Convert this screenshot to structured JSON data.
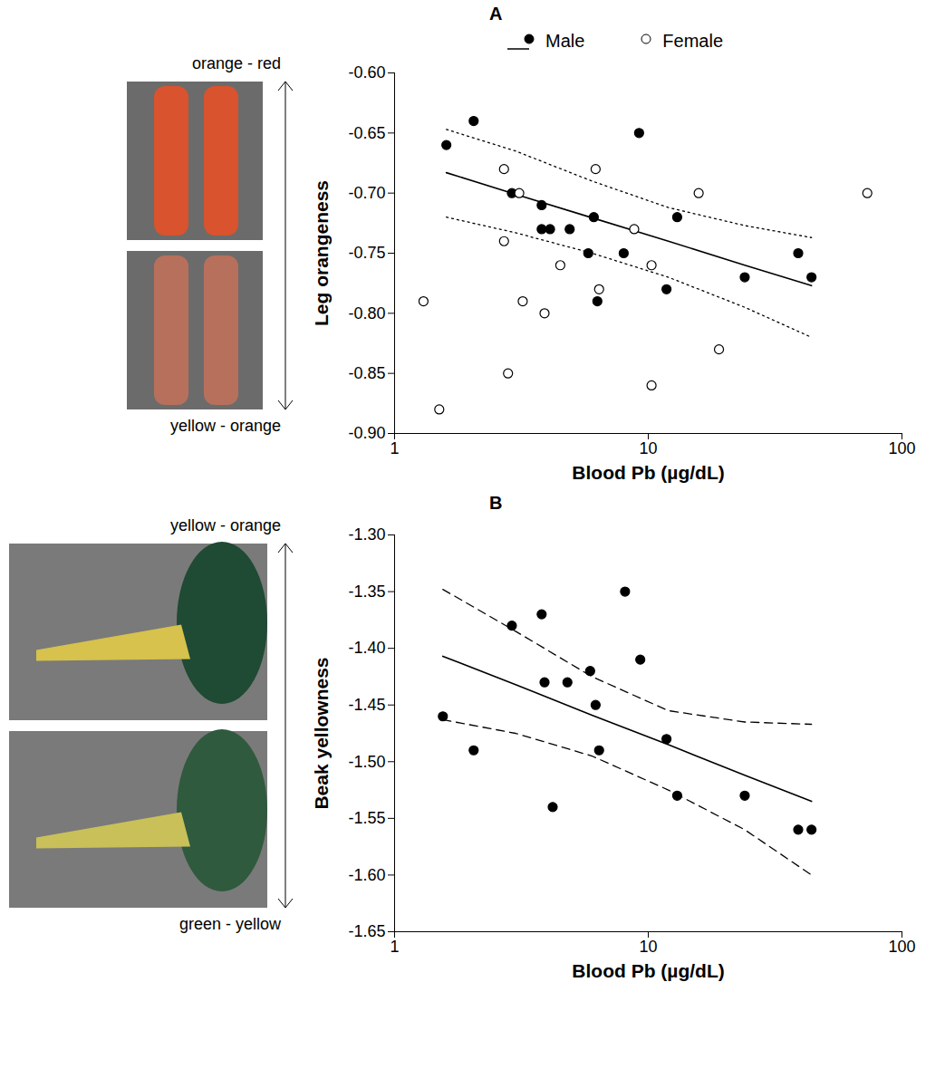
{
  "chart_data": [
    {
      "type": "scatter",
      "title": "A",
      "xlabel": "Blood Pb (µg/dL)",
      "ylabel": "Leg orangeness",
      "scale_labels": {
        "top": "orange - red",
        "bottom": "yellow - orange"
      },
      "log": "x",
      "grid": false,
      "legend": "top",
      "xlim": [
        1,
        100
      ],
      "xticks": [
        1,
        10,
        100
      ],
      "ylim": [
        -0.9,
        -0.6
      ],
      "yticks": [
        {
          "value": -0.9,
          "label": "-0.90"
        },
        {
          "value": -0.85,
          "label": "-0.85"
        },
        {
          "value": -0.8,
          "label": "-0.80"
        },
        {
          "value": -0.75,
          "label": "-0.75"
        },
        {
          "value": -0.7,
          "label": "-0.70"
        },
        {
          "value": -0.65,
          "label": "-0.65"
        },
        {
          "value": -0.6,
          "label": "-0.60"
        }
      ],
      "series": [
        {
          "name": "Male",
          "color": "#000000",
          "marker": "filled",
          "x": [
            1.6,
            2.05,
            2.9,
            3.8,
            3.8,
            4.1,
            4.9,
            5.8,
            6.1,
            6.3,
            8.0,
            9.2,
            11.8,
            13.0,
            24,
            39,
            44
          ],
          "values": [
            -0.66,
            -0.64,
            -0.7,
            -0.71,
            -0.73,
            -0.73,
            -0.73,
            -0.75,
            -0.72,
            -0.79,
            -0.75,
            -0.65,
            -0.78,
            -0.72,
            -0.77,
            -0.75,
            -0.77
          ],
          "fit": {
            "x": [
              1.6,
              3,
              6,
              12,
              24,
              44
            ],
            "values": [
              -0.683,
              -0.701,
              -0.7205,
              -0.74,
              -0.76,
              -0.777
            ]
          },
          "ci": {
            "x": [
              1.6,
              3,
              6,
              12,
              24,
              44
            ],
            "lower": [
              -0.72,
              -0.733,
              -0.75,
              -0.77,
              -0.795,
              -0.82
            ],
            "upper": [
              -0.647,
              -0.665,
              -0.69,
              -0.712,
              -0.727,
              -0.737
            ],
            "line_style": "dotted"
          }
        },
        {
          "name": "Female",
          "color": "#000000",
          "marker": "open",
          "x": [
            1.3,
            1.5,
            2.7,
            2.7,
            2.8,
            3.1,
            3.2,
            3.9,
            4.5,
            6.2,
            6.4,
            8.8,
            10.3,
            10.3,
            15.8,
            19,
            73
          ],
          "values": [
            -0.79,
            -0.88,
            -0.68,
            -0.74,
            -0.85,
            -0.7,
            -0.79,
            -0.8,
            -0.76,
            -0.68,
            -0.78,
            -0.73,
            -0.76,
            -0.86,
            -0.7,
            -0.83,
            -0.7
          ]
        }
      ]
    },
    {
      "type": "scatter",
      "title": "B",
      "xlabel": "Blood Pb (µg/dL)",
      "ylabel": "Beak yellowness",
      "scale_labels": {
        "top": "yellow - orange",
        "bottom": "green - yellow"
      },
      "log": "x",
      "grid": false,
      "xlim": [
        1,
        100
      ],
      "xticks": [
        1,
        10,
        100
      ],
      "ylim": [
        -1.65,
        -1.3
      ],
      "yticks": [
        {
          "value": -1.65,
          "label": "-1.65"
        },
        {
          "value": -1.6,
          "label": "-1.60"
        },
        {
          "value": -1.55,
          "label": "-1.55"
        },
        {
          "value": -1.5,
          "label": "-1.50"
        },
        {
          "value": -1.45,
          "label": "-1.45"
        },
        {
          "value": -1.4,
          "label": "-1.40"
        },
        {
          "value": -1.35,
          "label": "-1.35"
        },
        {
          "value": -1.3,
          "label": "-1.30"
        }
      ],
      "series": [
        {
          "color": "#000000",
          "marker": "filled",
          "x": [
            1.55,
            2.05,
            2.9,
            3.8,
            3.9,
            4.2,
            4.8,
            5.9,
            6.2,
            6.4,
            8.1,
            9.3,
            11.8,
            13,
            24,
            39,
            44
          ],
          "values": [
            -1.46,
            -1.49,
            -1.38,
            -1.37,
            -1.43,
            -1.54,
            -1.43,
            -1.42,
            -1.45,
            -1.49,
            -1.35,
            -1.41,
            -1.48,
            -1.53,
            -1.53,
            -1.56,
            -1.56
          ],
          "fit": {
            "x": [
              1.55,
              3,
              6,
              12,
              24,
              44
            ],
            "values": [
              -1.407,
              -1.432,
              -1.459,
              -1.485,
              -1.512,
              -1.535
            ]
          },
          "ci": {
            "x": [
              1.55,
              3,
              6,
              12,
              24,
              44
            ],
            "lower": [
              -1.463,
              -1.475,
              -1.495,
              -1.525,
              -1.56,
              -1.6
            ],
            "upper": [
              -1.348,
              -1.385,
              -1.425,
              -1.455,
              -1.465,
              -1.467
            ],
            "line_style": "dashed"
          }
        }
      ]
    }
  ]
}
